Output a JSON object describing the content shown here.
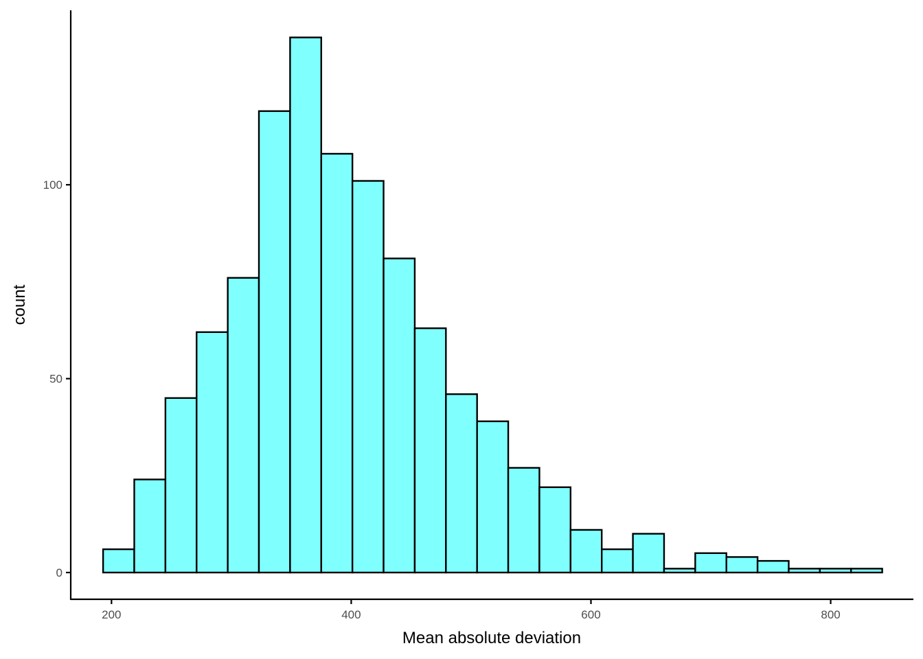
{
  "chart_data": {
    "type": "histogram",
    "xlabel": "Mean absolute deviation",
    "ylabel": "count",
    "bar_color": "#80FFFF",
    "bar_outline": "#000000",
    "bin_width": 26,
    "bins": [
      {
        "x0": 193,
        "x1": 219,
        "count": 6
      },
      {
        "x0": 219,
        "x1": 245,
        "count": 24
      },
      {
        "x0": 245,
        "x1": 271,
        "count": 45
      },
      {
        "x0": 271,
        "x1": 297,
        "count": 62
      },
      {
        "x0": 297,
        "x1": 323,
        "count": 76
      },
      {
        "x0": 323,
        "x1": 349,
        "count": 119
      },
      {
        "x0": 349,
        "x1": 375,
        "count": 138
      },
      {
        "x0": 375,
        "x1": 401,
        "count": 108
      },
      {
        "x0": 401,
        "x1": 427,
        "count": 101
      },
      {
        "x0": 427,
        "x1": 453,
        "count": 81
      },
      {
        "x0": 453,
        "x1": 479,
        "count": 63
      },
      {
        "x0": 479,
        "x1": 505,
        "count": 46
      },
      {
        "x0": 505,
        "x1": 531,
        "count": 39
      },
      {
        "x0": 531,
        "x1": 557,
        "count": 27
      },
      {
        "x0": 557,
        "x1": 583,
        "count": 22
      },
      {
        "x0": 583,
        "x1": 609,
        "count": 11
      },
      {
        "x0": 609,
        "x1": 635,
        "count": 6
      },
      {
        "x0": 635,
        "x1": 661,
        "count": 10
      },
      {
        "x0": 661,
        "x1": 687,
        "count": 1
      },
      {
        "x0": 687,
        "x1": 713,
        "count": 5
      },
      {
        "x0": 713,
        "x1": 739,
        "count": 4
      },
      {
        "x0": 739,
        "x1": 765,
        "count": 3
      },
      {
        "x0": 765,
        "x1": 791,
        "count": 1
      },
      {
        "x0": 791,
        "x1": 817,
        "count": 1
      },
      {
        "x0": 817,
        "x1": 843,
        "count": 1
      }
    ],
    "xlim": [
      166,
      869
    ],
    "ylim": [
      -6.9,
      145
    ],
    "xticks": [
      200,
      400,
      600,
      800
    ],
    "yticks": [
      0,
      50,
      100
    ],
    "grid": false,
    "legend": "none"
  }
}
